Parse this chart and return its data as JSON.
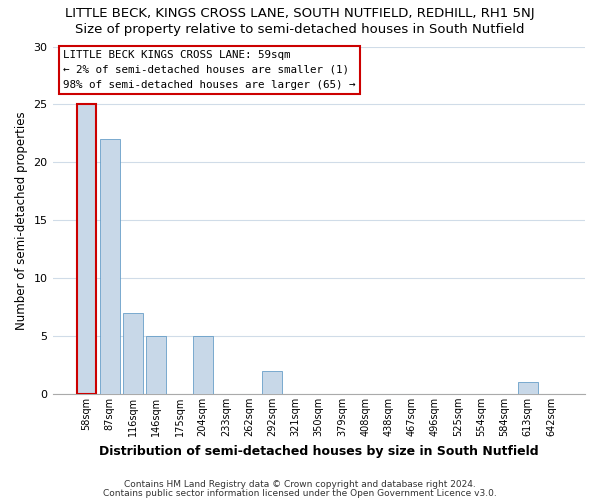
{
  "title": "LITTLE BECK, KINGS CROSS LANE, SOUTH NUTFIELD, REDHILL, RH1 5NJ",
  "subtitle": "Size of property relative to semi-detached houses in South Nutfield",
  "xlabel": "Distribution of semi-detached houses by size in South Nutfield",
  "ylabel": "Number of semi-detached properties",
  "bin_labels": [
    "58sqm",
    "87sqm",
    "116sqm",
    "146sqm",
    "175sqm",
    "204sqm",
    "233sqm",
    "262sqm",
    "292sqm",
    "321sqm",
    "350sqm",
    "379sqm",
    "408sqm",
    "438sqm",
    "467sqm",
    "496sqm",
    "525sqm",
    "554sqm",
    "584sqm",
    "613sqm",
    "642sqm"
  ],
  "bar_values": [
    25,
    22,
    7,
    5,
    0,
    5,
    0,
    0,
    2,
    0,
    0,
    0,
    0,
    0,
    0,
    0,
    0,
    0,
    0,
    1,
    0
  ],
  "bar_color": "#c8d8e8",
  "bar_edge_color": "#5090c0",
  "highlight_bar_index": 0,
  "highlight_edge_color": "#cc0000",
  "ylim": [
    0,
    30
  ],
  "yticks": [
    0,
    5,
    10,
    15,
    20,
    25,
    30
  ],
  "annotation_title": "LITTLE BECK KINGS CROSS LANE: 59sqm",
  "annotation_line1": "← 2% of semi-detached houses are smaller (1)",
  "annotation_line2": "98% of semi-detached houses are larger (65) →",
  "annotation_box_color": "#ffffff",
  "annotation_box_edge": "#cc0000",
  "footer_line1": "Contains HM Land Registry data © Crown copyright and database right 2024.",
  "footer_line2": "Contains public sector information licensed under the Open Government Licence v3.0.",
  "title_fontsize": 9.5,
  "subtitle_fontsize": 9.5,
  "grid_color": "#d0dce8",
  "background_color": "#ffffff"
}
